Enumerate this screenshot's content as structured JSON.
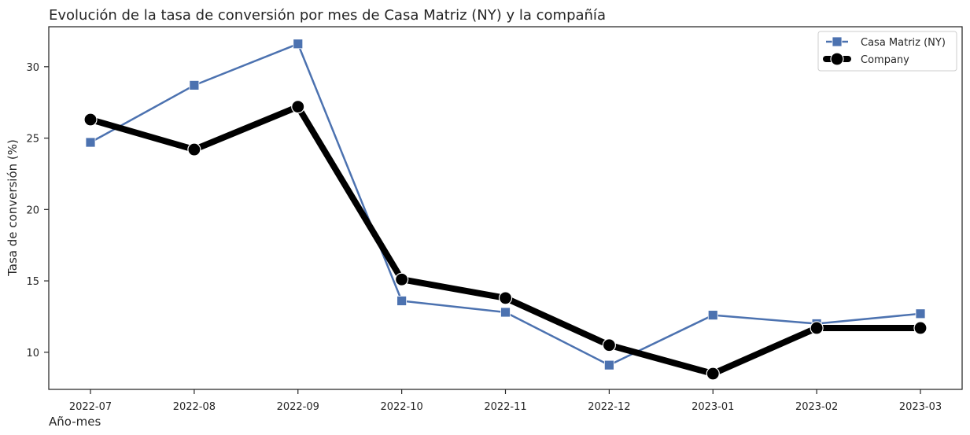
{
  "chart_data": {
    "type": "line",
    "title": "Evolución de la tasa de conversión por mes de Casa Matriz (NY) y la compañía",
    "xlabel": "Año-mes",
    "ylabel": "Tasa de conversión (%)",
    "categories": [
      "2022-07",
      "2022-08",
      "2022-09",
      "2022-10",
      "2022-11",
      "2022-12",
      "2023-01",
      "2023-02",
      "2023-03"
    ],
    "ylim": [
      7.4,
      32.8
    ],
    "yticks": [
      10,
      15,
      20,
      25,
      30
    ],
    "grid": false,
    "legend_position": "top-right",
    "series": [
      {
        "name": "Casa Matriz (NY)",
        "color": "#4c72b0",
        "marker": "square",
        "values": [
          24.7,
          28.7,
          31.6,
          13.6,
          12.8,
          9.1,
          12.6,
          12.0,
          12.7
        ]
      },
      {
        "name": "Company",
        "color": "#000000",
        "marker": "circle",
        "values": [
          26.3,
          24.2,
          27.2,
          15.1,
          13.8,
          10.5,
          8.5,
          11.7,
          11.7
        ]
      }
    ]
  }
}
